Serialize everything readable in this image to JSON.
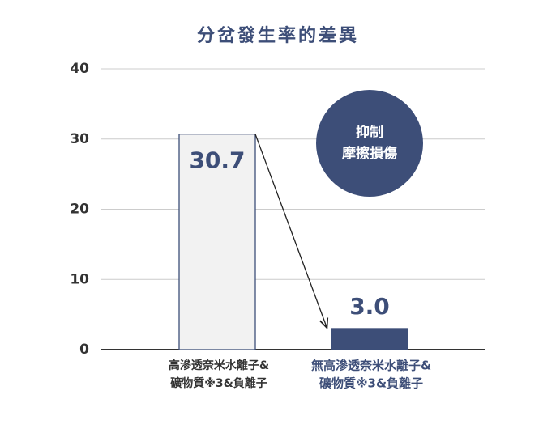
{
  "chart_data": {
    "type": "bar",
    "title": "分岔發生率的差異",
    "categories": [
      [
        "高滲透奈米水離子&",
        "礦物質※3&負離子"
      ],
      [
        "無高滲透奈米水離子&",
        "礦物質※3&負離子"
      ]
    ],
    "values": [
      30.7,
      3.0
    ],
    "value_labels": [
      "30.7",
      "3.0"
    ],
    "colors": [
      "#f2f2f2",
      "#3d4e78"
    ],
    "edge_color": "#3d4e78",
    "label_colors": [
      "#333333",
      "#3d4e78"
    ],
    "ylim": [
      0,
      40
    ],
    "yticks": [
      0,
      10,
      20,
      30,
      40
    ],
    "grid": true,
    "annotation": [
      "抑制",
      "摩擦損傷"
    ]
  }
}
